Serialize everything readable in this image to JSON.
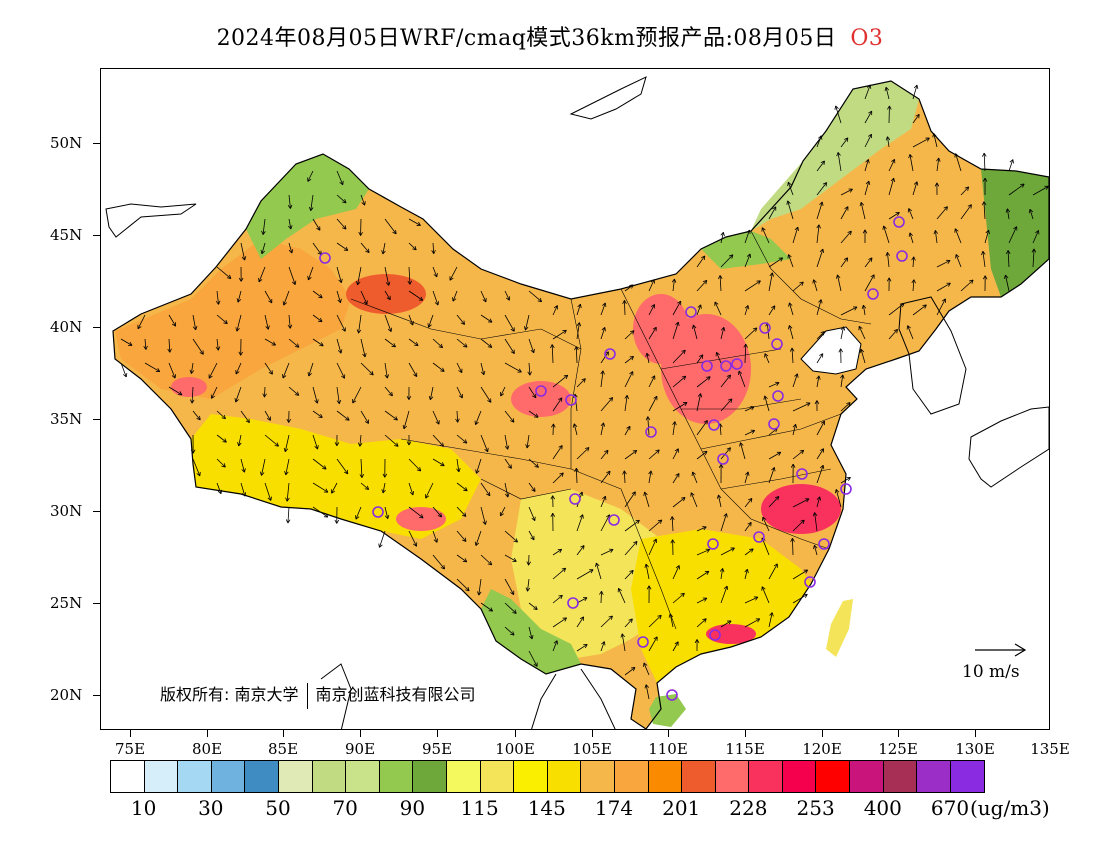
{
  "title": "2024年08月05日WRF/cmaq模式36km预报产品:08月05日",
  "species": "O3",
  "lat_labels": [
    "50N",
    "45N",
    "40N",
    "35N",
    "30N",
    "25N",
    "20N"
  ],
  "lon_labels": [
    "75E",
    "80E",
    "85E",
    "90E",
    "95E",
    "100E",
    "105E",
    "110E",
    "115E",
    "120E",
    "125E",
    "130E",
    "135E"
  ],
  "copyright_prefix": "版权所有:",
  "copyright_org1": "南京大学",
  "copyright_org2": "南京创蓝科技有限公司",
  "wind_reference_label": "10 m/s",
  "colorbar": {
    "colors": [
      "#ffffff",
      "#d6eef9",
      "#a5d8f2",
      "#6fb2e0",
      "#3f8cc3",
      "#dfeab6",
      "#c1db82",
      "#c8e38a",
      "#92c94e",
      "#6ea73a",
      "#f4f95e",
      "#f4e45a",
      "#fbef00",
      "#f9df00",
      "#f6b74a",
      "#f8a63d",
      "#fa8a00",
      "#ee5c2e",
      "#ff6a6a",
      "#f9325d",
      "#f5004c",
      "#ff0000",
      "#c9147c",
      "#a72f55",
      "#9b2ec6",
      "#8a2be2"
    ],
    "labels": [
      "10",
      "30",
      "50",
      "70",
      "90",
      "115",
      "145",
      "174",
      "201",
      "228",
      "253",
      "400",
      "670"
    ],
    "unit": "(ug/m3)"
  },
  "station_marker_color": "#8a2be2",
  "ocean_color": "#ffffff"
}
